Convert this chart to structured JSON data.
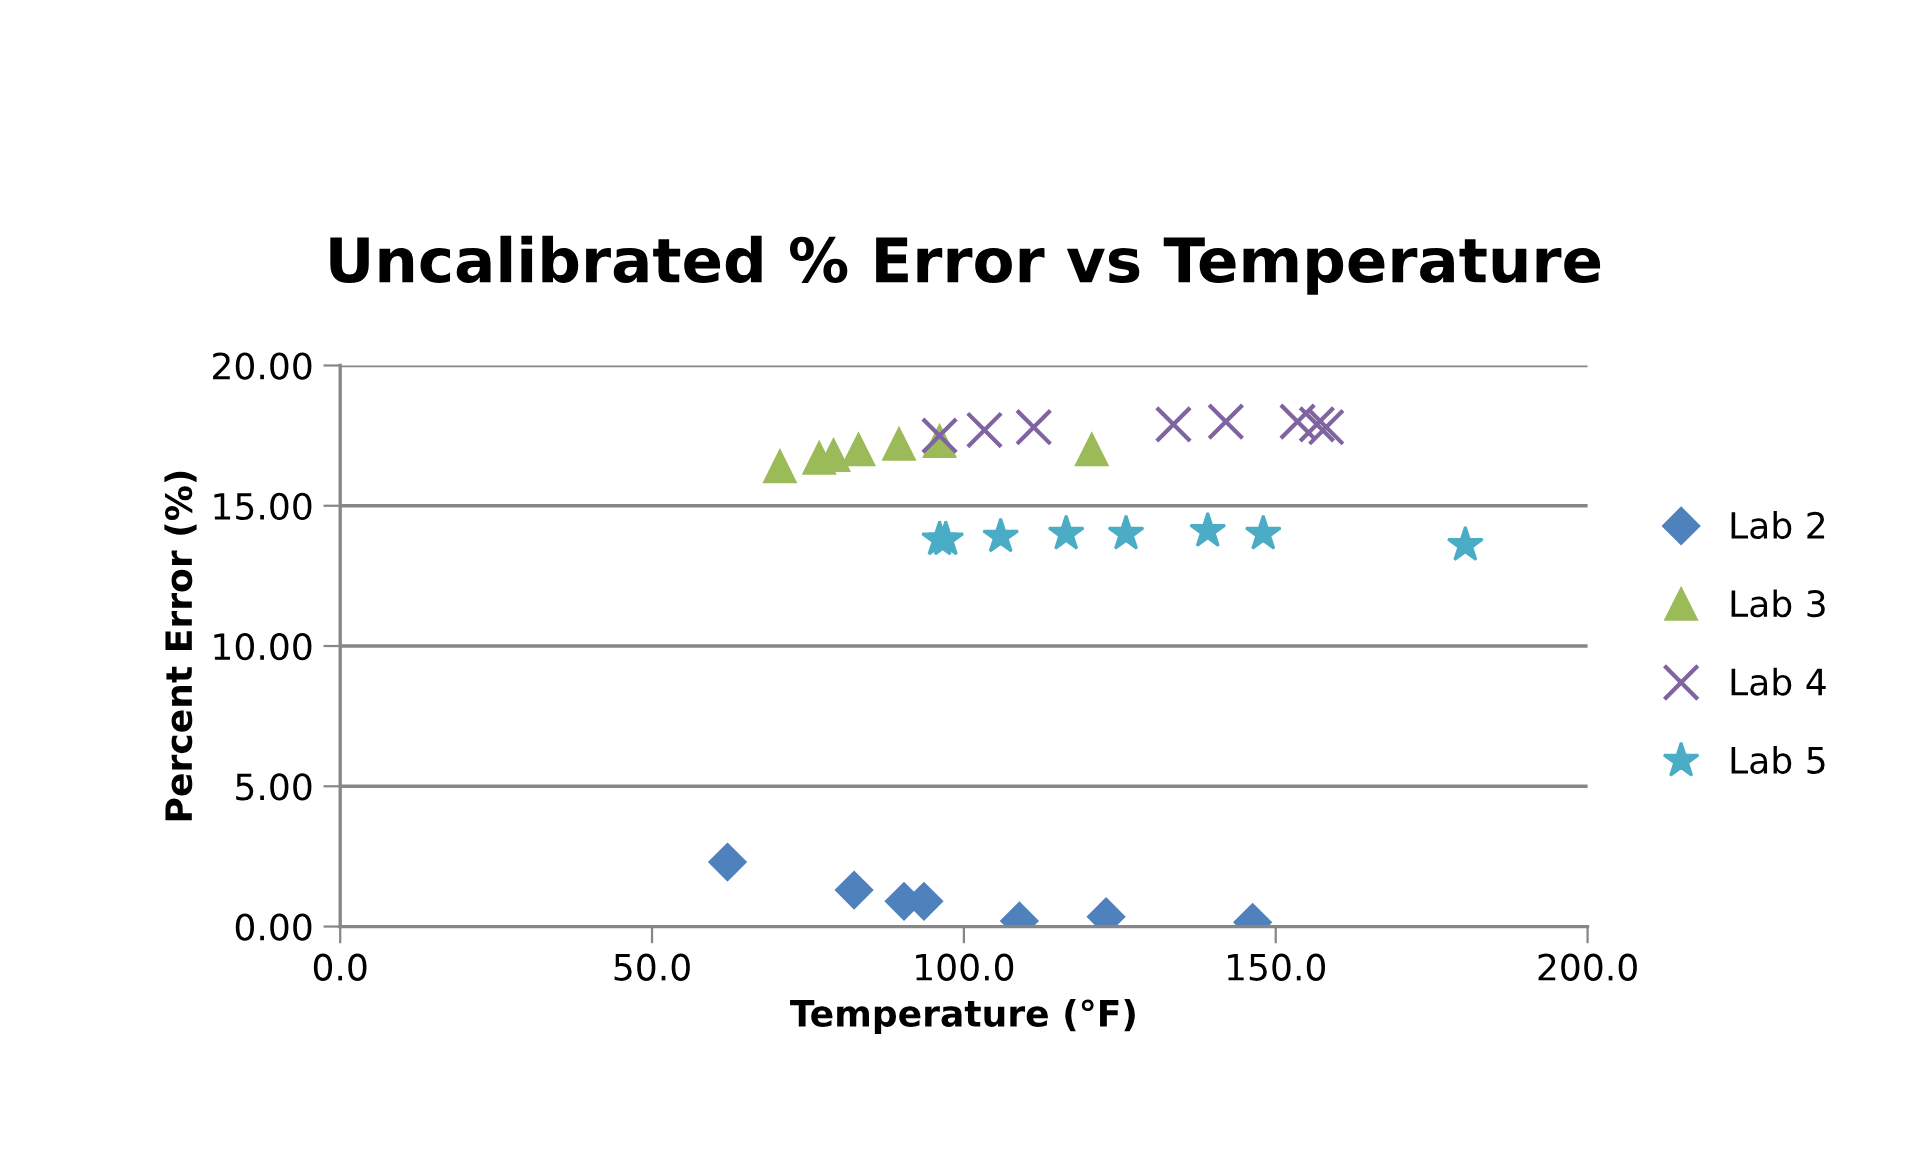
{
  "chart_data": {
    "type": "scatter",
    "title": "Uncalibrated % Error vs Temperature",
    "xlabel": "Temperature (°F)",
    "ylabel": "Percent Error (%)",
    "xlim": [
      0,
      200
    ],
    "xticks": [
      {
        "value": 0,
        "label": "0.0"
      },
      {
        "value": 50,
        "label": "50.0"
      },
      {
        "value": 100,
        "label": "100.0"
      },
      {
        "value": 150,
        "label": "150.0"
      },
      {
        "value": 200,
        "label": "200.0"
      }
    ],
    "ylim": [
      0,
      20
    ],
    "yticks": [
      {
        "value": 0,
        "label": "0.00"
      },
      {
        "value": 5,
        "label": "5.00"
      },
      {
        "value": 10,
        "label": "10.00"
      },
      {
        "value": 15,
        "label": "15.00"
      },
      {
        "value": 20,
        "label": "20.00"
      }
    ],
    "grid": "y",
    "legend": "right",
    "series": [
      {
        "name": "Lab 2",
        "color": "#4f81bd",
        "marker": "diamond",
        "x": [
          62.1,
          82.4,
          90.4,
          93.6,
          108.9,
          122.8,
          146.3
        ],
        "values": [
          2.3,
          1.3,
          0.9,
          0.9,
          0.2,
          0.35,
          0.15
        ]
      },
      {
        "name": "Lab 3",
        "color": "#9bbb59",
        "marker": "triangle",
        "x": [
          70.5,
          76.8,
          79.1,
          83.1,
          89.6,
          96.1,
          120.5
        ],
        "values": [
          16.4,
          16.7,
          16.8,
          17.0,
          17.2,
          17.3,
          17.0
        ]
      },
      {
        "name": "Lab 4",
        "color": "#8064a2",
        "marker": "cross",
        "x": [
          96.1,
          103.3,
          111.2,
          133.6,
          142.0,
          153.5,
          156.6,
          158.1
        ],
        "values": [
          17.5,
          17.7,
          17.8,
          17.9,
          18.0,
          18.0,
          17.9,
          17.8
        ]
      },
      {
        "name": "Lab 5",
        "color": "#4bacc6",
        "marker": "star",
        "x": [
          96.1,
          97.1,
          105.9,
          116.4,
          126.0,
          139.1,
          148.0,
          180.4
        ],
        "values": [
          13.8,
          13.8,
          13.9,
          14.0,
          14.0,
          14.1,
          14.0,
          13.6
        ]
      }
    ]
  }
}
